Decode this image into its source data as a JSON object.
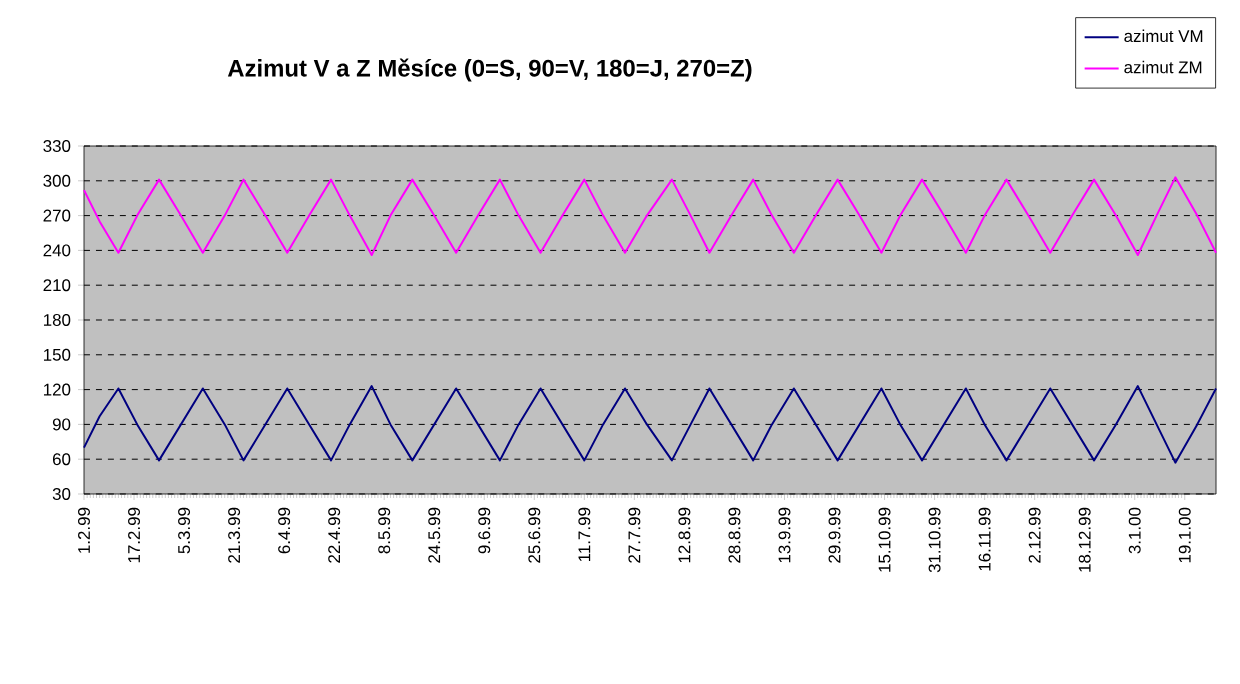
{
  "chart_data": {
    "type": "line",
    "title": "Azimut V a Z Měsíce (0=S, 90=V, 180=J, 270=Z)",
    "x": [
      "1999-02-01",
      "1999-02-06",
      "1999-02-12",
      "1999-02-18",
      "1999-02-25",
      "1999-03-04",
      "1999-03-11",
      "1999-03-18",
      "1999-03-24",
      "1999-03-31",
      "1999-04-07",
      "1999-04-14",
      "1999-04-21",
      "1999-04-27",
      "1999-05-04",
      "1999-05-10",
      "1999-05-17",
      "1999-05-24",
      "1999-05-31",
      "1999-06-07",
      "1999-06-14",
      "1999-06-20",
      "1999-06-27",
      "1999-07-04",
      "1999-07-11",
      "1999-07-17",
      "1999-07-24",
      "1999-07-31",
      "1999-08-08",
      "1999-08-14",
      "1999-08-20",
      "1999-08-27",
      "1999-09-03",
      "1999-09-09",
      "1999-09-16",
      "1999-09-23",
      "1999-09-30",
      "1999-10-07",
      "1999-10-14",
      "1999-10-20",
      "1999-10-27",
      "1999-11-03",
      "1999-11-10",
      "1999-11-16",
      "1999-11-23",
      "1999-11-30",
      "1999-12-07",
      "1999-12-14",
      "1999-12-21",
      "1999-12-28",
      "2000-01-04",
      "2000-01-10",
      "2000-01-16",
      "2000-01-23",
      "2000-01-29"
    ],
    "series": [
      {
        "name": "azimut VM",
        "color": "#000080",
        "values": [
          70,
          97,
          121,
          90,
          59,
          90,
          121,
          90,
          59,
          90,
          121,
          90,
          59,
          90,
          123,
          90,
          59,
          90,
          121,
          90,
          59,
          90,
          121,
          90,
          59,
          90,
          121,
          90,
          59,
          90,
          121,
          90,
          59,
          90,
          121,
          90,
          59,
          90,
          121,
          90,
          59,
          90,
          121,
          90,
          59,
          90,
          121,
          90,
          59,
          90,
          123,
          90,
          57,
          90,
          121
        ]
      },
      {
        "name": "azimut ZM",
        "color": "#ff00ff",
        "values": [
          292,
          265,
          238,
          270,
          301,
          270,
          238,
          270,
          301,
          270,
          238,
          270,
          301,
          270,
          236,
          270,
          301,
          270,
          238,
          270,
          301,
          270,
          238,
          270,
          301,
          270,
          238,
          270,
          301,
          270,
          238,
          270,
          301,
          270,
          238,
          270,
          301,
          270,
          238,
          270,
          301,
          270,
          238,
          270,
          301,
          270,
          238,
          270,
          301,
          270,
          236,
          270,
          303,
          270,
          238
        ]
      }
    ],
    "xlim": [
      "1999-02-01",
      "2000-01-29"
    ],
    "xticks": [
      {
        "value": "1999-02-01",
        "label": "1.2.99"
      },
      {
        "value": "1999-02-17",
        "label": "17.2.99"
      },
      {
        "value": "1999-03-05",
        "label": "5.3.99"
      },
      {
        "value": "1999-03-21",
        "label": "21.3.99"
      },
      {
        "value": "1999-04-06",
        "label": "6.4.99"
      },
      {
        "value": "1999-04-22",
        "label": "22.4.99"
      },
      {
        "value": "1999-05-08",
        "label": "8.5.99"
      },
      {
        "value": "1999-05-24",
        "label": "24.5.99"
      },
      {
        "value": "1999-06-09",
        "label": "9.6.99"
      },
      {
        "value": "1999-06-25",
        "label": "25.6.99"
      },
      {
        "value": "1999-07-11",
        "label": "11.7.99"
      },
      {
        "value": "1999-07-27",
        "label": "27.7.99"
      },
      {
        "value": "1999-08-12",
        "label": "12.8.99"
      },
      {
        "value": "1999-08-28",
        "label": "28.8.99"
      },
      {
        "value": "1999-09-13",
        "label": "13.9.99"
      },
      {
        "value": "1999-09-29",
        "label": "29.9.99"
      },
      {
        "value": "1999-10-15",
        "label": "15.10.99"
      },
      {
        "value": "1999-10-31",
        "label": "31.10.99"
      },
      {
        "value": "1999-11-16",
        "label": "16.11.99"
      },
      {
        "value": "1999-12-02",
        "label": "2.12.99"
      },
      {
        "value": "1999-12-18",
        "label": "18.12.99"
      },
      {
        "value": "2000-01-03",
        "label": "3.1.00"
      },
      {
        "value": "2000-01-19",
        "label": "19.1.00"
      }
    ],
    "ylim": [
      30,
      330
    ],
    "yticks": [
      30,
      60,
      90,
      120,
      150,
      180,
      210,
      240,
      270,
      300,
      330
    ],
    "grid": "y",
    "legend": "top right",
    "marker": "none",
    "line_style": "solid"
  }
}
